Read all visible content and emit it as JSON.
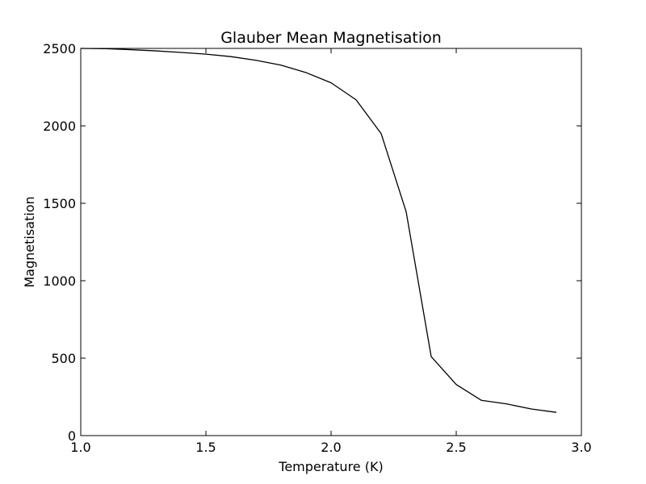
{
  "chart_data": {
    "type": "line",
    "title": "Glauber Mean Magnetisation",
    "xlabel": "Temperature (K)",
    "ylabel": "Magnetisation",
    "xlim": [
      1.0,
      3.0
    ],
    "ylim": [
      0,
      2500
    ],
    "x_ticks": [
      "1.0",
      "1.5",
      "2.0",
      "2.5",
      "3.0"
    ],
    "y_ticks": [
      "0",
      "500",
      "1000",
      "1500",
      "2000",
      "2500"
    ],
    "grid": false,
    "legend": "none",
    "line_color": "#000000",
    "series": [
      {
        "x": [
          1.0,
          1.1,
          1.2,
          1.3,
          1.4,
          1.5,
          1.6,
          1.7,
          1.8,
          1.9,
          2.0,
          2.1,
          2.2,
          2.3,
          2.4,
          2.5,
          2.6,
          2.7,
          2.8,
          2.9
        ],
        "y": [
          2500,
          2498,
          2492,
          2484,
          2474,
          2463,
          2447,
          2423,
          2392,
          2344,
          2278,
          2168,
          1950,
          1445,
          510,
          330,
          228,
          205,
          172,
          150
        ]
      }
    ]
  }
}
